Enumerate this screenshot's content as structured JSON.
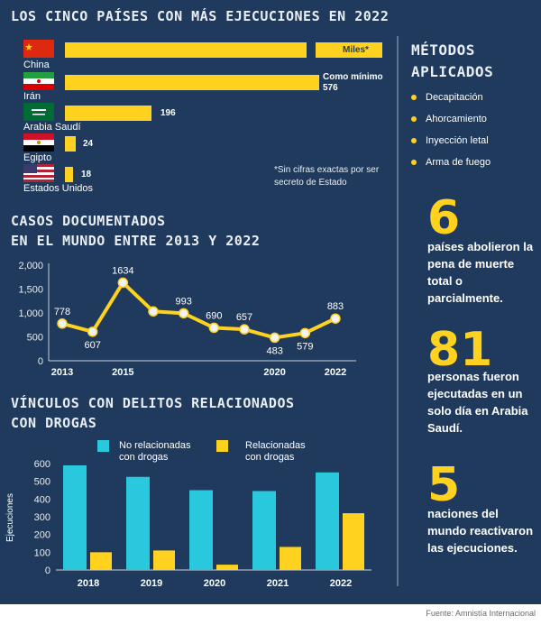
{
  "top_section": {
    "title": "LOS CINCO PAÍSES CON MÁS EJECUCIONES EN 2022",
    "note": "*Sin cifras exactas por ser secreto de Estado"
  },
  "methods": {
    "title_line1": "MÉTODOS",
    "title_line2": "APLICADOS",
    "items": [
      "Decapitación",
      "Ahorcamiento",
      "Inyección letal",
      "Arma de fuego"
    ],
    "dot_color": "#ffd21f"
  },
  "facts": [
    {
      "number": "6",
      "text": "países abolieron la pena de muerte total o parcialmente."
    },
    {
      "number": "81",
      "text": "personas fueron ejecutadas en un solo día en Arabia Saudí."
    },
    {
      "number": "5",
      "text": "naciones del mundo reactivaron las ejecuciones."
    }
  ],
  "line_section": {
    "title_line1": "CASOS DOCUMENTADOS",
    "title_line2": "EN EL MUNDO ENTRE 2013 Y 2022"
  },
  "drug_section": {
    "title_line1": "VÍNCULOS CON DELITOS RELACIONADOS",
    "title_line2": "CON DROGAS"
  },
  "source": "Fuente: Amnistía Internacional",
  "colors": {
    "background": "#1f3a5c",
    "yellow": "#ffd21f",
    "cyan": "#29c8dc",
    "title": "#e9eef4"
  },
  "chart_data": [
    {
      "type": "bar",
      "orientation": "horizontal",
      "categories": [
        "China",
        "Irán",
        "Arabia Saudí",
        "Egipto",
        "Estados Unidos"
      ],
      "values": [
        null,
        576,
        196,
        24,
        18
      ],
      "value_labels": [
        "Miles*",
        "Como mínimo 576",
        "196",
        "24",
        "18"
      ],
      "flags": [
        "china-flag-icon",
        "iran-flag-icon",
        "saudi-arabia-flag-icon",
        "egypt-flag-icon",
        "usa-flag-icon"
      ],
      "xlim": [
        0,
        600
      ]
    },
    {
      "type": "line",
      "x": [
        2013,
        2014,
        2015,
        2016,
        2017,
        2018,
        2019,
        2020,
        2021,
        2022
      ],
      "values": [
        778,
        607,
        1634,
        1032,
        993,
        690,
        657,
        483,
        579,
        883
      ],
      "point_labels": [
        "778",
        "607",
        "1634",
        "",
        "993",
        "690",
        "657",
        "483",
        "579",
        "883"
      ],
      "x_ticks": [
        "2013",
        "2015",
        "2020",
        "2022"
      ],
      "y_ticks": [
        "2,000",
        "1,500",
        "1,000",
        "500",
        "0"
      ],
      "ylim": [
        0,
        2000
      ],
      "grid": false
    },
    {
      "type": "bar",
      "categories": [
        "2018",
        "2019",
        "2020",
        "2021",
        "2022"
      ],
      "series": [
        {
          "name": "No relacionadas con drogas",
          "values": [
            590,
            525,
            450,
            445,
            550
          ]
        },
        {
          "name": "Relacionadas con drogas",
          "values": [
            100,
            110,
            30,
            130,
            320
          ]
        }
      ],
      "ylabel": "Ejecuciones",
      "y_ticks": [
        "600",
        "500",
        "400",
        "300",
        "200",
        "100",
        "0"
      ],
      "ylim": [
        0,
        600
      ],
      "legend": "top"
    }
  ]
}
